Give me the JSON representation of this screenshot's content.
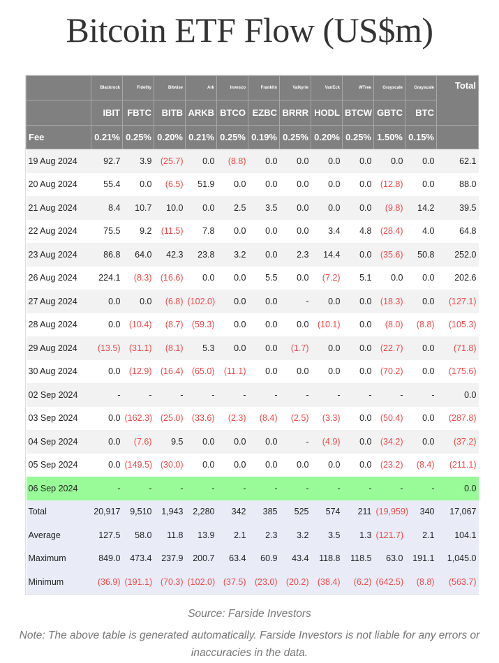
{
  "title": "Bitcoin ETF Flow (US$m)",
  "providers": [
    "Blackrock",
    "Fidelity",
    "Bitwise",
    "Ark",
    "Invesco",
    "Franklin",
    "Valkyrie",
    "VanEck",
    "WTree",
    "Grayscale",
    "Grayscale"
  ],
  "tickers": [
    "IBIT",
    "FBTC",
    "BITB",
    "ARKB",
    "BTCO",
    "EZBC",
    "BRRR",
    "HODL",
    "BTCW",
    "GBTC",
    "BTC"
  ],
  "total_header": "Total",
  "fee_label": "Fee",
  "fees": [
    "0.21%",
    "0.25%",
    "0.20%",
    "0.21%",
    "0.25%",
    "0.19%",
    "0.25%",
    "0.20%",
    "0.25%",
    "1.50%",
    "0.15%"
  ],
  "rows": [
    {
      "date": "19 Aug 2024",
      "values": [
        "92.7",
        "3.9",
        "(25.7)",
        "0.0",
        "(8.8)",
        "0.0",
        "0.0",
        "0.0",
        "0.0",
        "0.0",
        "0.0",
        "62.1"
      ]
    },
    {
      "date": "20 Aug 2024",
      "values": [
        "55.4",
        "0.0",
        "(6.5)",
        "51.9",
        "0.0",
        "0.0",
        "0.0",
        "0.0",
        "0.0",
        "(12.8)",
        "0.0",
        "88.0"
      ]
    },
    {
      "date": "21 Aug 2024",
      "values": [
        "8.4",
        "10.7",
        "10.0",
        "0.0",
        "2.5",
        "3.5",
        "0.0",
        "0.0",
        "0.0",
        "(9.8)",
        "14.2",
        "39.5"
      ]
    },
    {
      "date": "22 Aug 2024",
      "values": [
        "75.5",
        "9.2",
        "(11.5)",
        "7.8",
        "0.0",
        "0.0",
        "0.0",
        "3.4",
        "4.8",
        "(28.4)",
        "4.0",
        "64.8"
      ]
    },
    {
      "date": "23 Aug 2024",
      "values": [
        "86.8",
        "64.0",
        "42.3",
        "23.8",
        "3.2",
        "0.0",
        "2.3",
        "14.4",
        "0.0",
        "(35.6)",
        "50.8",
        "252.0"
      ]
    },
    {
      "date": "26 Aug 2024",
      "values": [
        "224.1",
        "(8.3)",
        "(16.6)",
        "0.0",
        "0.0",
        "5.5",
        "0.0",
        "(7.2)",
        "5.1",
        "0.0",
        "0.0",
        "202.6"
      ]
    },
    {
      "date": "27 Aug 2024",
      "values": [
        "0.0",
        "0.0",
        "(6.8)",
        "(102.0)",
        "0.0",
        "0.0",
        "-",
        "0.0",
        "0.0",
        "(18.3)",
        "0.0",
        "(127.1)"
      ]
    },
    {
      "date": "28 Aug 2024",
      "values": [
        "0.0",
        "(10.4)",
        "(8.7)",
        "(59.3)",
        "0.0",
        "0.0",
        "0.0",
        "(10.1)",
        "0.0",
        "(8.0)",
        "(8.8)",
        "(105.3)"
      ]
    },
    {
      "date": "29 Aug 2024",
      "values": [
        "(13.5)",
        "(31.1)",
        "(8.1)",
        "5.3",
        "0.0",
        "0.0",
        "(1.7)",
        "0.0",
        "0.0",
        "(22.7)",
        "0.0",
        "(71.8)"
      ]
    },
    {
      "date": "30 Aug 2024",
      "values": [
        "0.0",
        "(12.9)",
        "(16.4)",
        "(65.0)",
        "(11.1)",
        "0.0",
        "0.0",
        "0.0",
        "0.0",
        "(70.2)",
        "0.0",
        "(175.6)"
      ]
    },
    {
      "date": "02 Sep 2024",
      "values": [
        "-",
        "-",
        "-",
        "-",
        "-",
        "-",
        "-",
        "-",
        "-",
        "-",
        "-",
        "0.0"
      ]
    },
    {
      "date": "03 Sep 2024",
      "values": [
        "0.0",
        "(162.3)",
        "(25.0)",
        "(33.6)",
        "(2.3)",
        "(8.4)",
        "(2.5)",
        "(3.3)",
        "0.0",
        "(50.4)",
        "0.0",
        "(287.8)"
      ]
    },
    {
      "date": "04 Sep 2024",
      "values": [
        "0.0",
        "(7.6)",
        "9.5",
        "0.0",
        "0.0",
        "0.0",
        "-",
        "(4.9)",
        "0.0",
        "(34.2)",
        "0.0",
        "(37.2)"
      ]
    },
    {
      "date": "05 Sep 2024",
      "values": [
        "0.0",
        "(149.5)",
        "(30.0)",
        "0.0",
        "0.0",
        "0.0",
        "0.0",
        "0.0",
        "0.0",
        "(23.2)",
        "(8.4)",
        "(211.1)"
      ]
    },
    {
      "date": "06 Sep 2024",
      "highlight": true,
      "values": [
        "-",
        "-",
        "-",
        "-",
        "-",
        "-",
        "-",
        "-",
        "-",
        "-",
        "-",
        "0.0"
      ]
    }
  ],
  "summary": [
    {
      "date": "Total",
      "values": [
        "20,917",
        "9,510",
        "1,943",
        "2,280",
        "342",
        "385",
        "525",
        "574",
        "211",
        "(19,959)",
        "340",
        "17,067"
      ]
    },
    {
      "date": "Average",
      "values": [
        "127.5",
        "58.0",
        "11.8",
        "13.9",
        "2.1",
        "2.3",
        "3.2",
        "3.5",
        "1.3",
        "(121.7)",
        "2.1",
        "104.1"
      ]
    },
    {
      "date": "Maximum",
      "values": [
        "849.0",
        "473.4",
        "237.9",
        "200.7",
        "63.4",
        "60.9",
        "43.4",
        "118.8",
        "118.5",
        "63.0",
        "191.1",
        "1,045.0"
      ]
    },
    {
      "date": "Minimum",
      "values": [
        "(36.9)",
        "(191.1)",
        "(70.3)",
        "(102.0)",
        "(37.5)",
        "(23.0)",
        "(20.2)",
        "(38.4)",
        "(6.2)",
        "(642.5)",
        "(8.8)",
        "(563.7)"
      ]
    }
  ],
  "source": "Source: Farside Investors",
  "note": "Note: The above table is generated automatically. Farside Investors is not liable for any errors or inaccuracies in the data.",
  "colors": {
    "header": "#808080",
    "negative": "#f24848",
    "highlight": "#98fb98",
    "summary": "#e9ecf7"
  }
}
